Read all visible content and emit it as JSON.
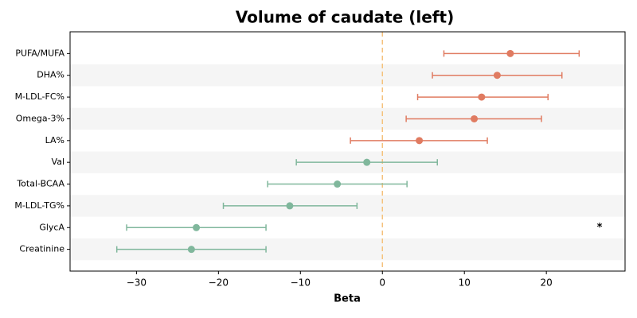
{
  "chart_data": {
    "type": "forest",
    "title": "Volume of caudate (left)",
    "x_label": "Beta",
    "categories": [
      "PUFA/MUFA",
      "DHA%",
      "M-LDL-FC%",
      "Omega-3%",
      "LA%",
      "Val",
      "Total-BCAA",
      "M-LDL-TG%",
      "GlycA",
      "Creatinine"
    ],
    "values": [
      15.6,
      14.0,
      12.1,
      11.2,
      4.5,
      -1.9,
      -5.5,
      -11.3,
      -22.7,
      -23.3
    ],
    "lower": [
      7.5,
      6.1,
      4.3,
      2.9,
      -3.9,
      -10.5,
      -14.0,
      -19.4,
      -31.2,
      -32.4
    ],
    "upper": [
      24.0,
      21.9,
      20.2,
      19.4,
      12.8,
      6.7,
      3.0,
      -3.1,
      -14.2,
      -14.2
    ],
    "colors": [
      "#e07b61",
      "#e07b61",
      "#e07b61",
      "#e07b61",
      "#e07b61",
      "#80b79c",
      "#80b79c",
      "#80b79c",
      "#80b79c",
      "#80b79c"
    ],
    "reference_line": {
      "value": 0,
      "color": "#f5c27d"
    },
    "annotations": [
      {
        "text": "*",
        "category": "GlycA"
      }
    ],
    "xlim": [
      -38.1,
      29.6
    ],
    "xticks": [
      {
        "value": -30,
        "label": "−30"
      },
      {
        "value": -20,
        "label": "−20"
      },
      {
        "value": -10,
        "label": "−10"
      },
      0,
      10,
      20
    ]
  }
}
